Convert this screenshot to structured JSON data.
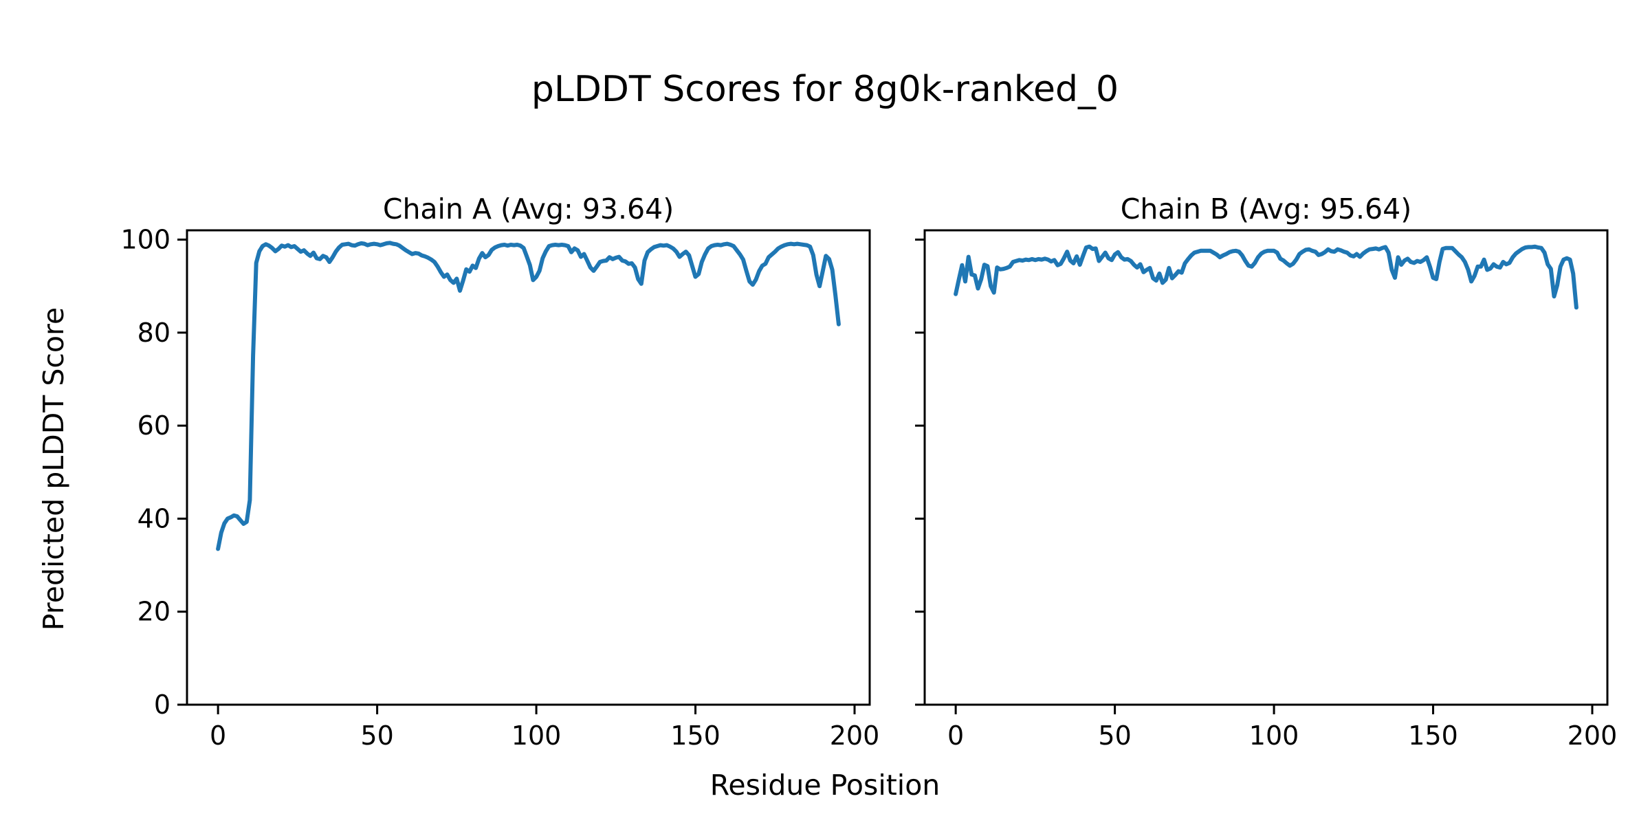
{
  "figure": {
    "title": "pLDDT Scores for 8g0k-ranked_0",
    "xlabel": "Residue Position",
    "ylabel": "Predicted pLDDT Score",
    "background_color": "#ffffff",
    "line_color": "#1f77b4",
    "axis_color": "#000000"
  },
  "chart_data": [
    {
      "type": "line",
      "title": "Chain A (Avg: 93.64)",
      "series_name": "Chain A pLDDT",
      "avg": 93.64,
      "x_start": 0,
      "xlim": [
        -9.75,
        204.75
      ],
      "ylim": [
        0,
        102
      ],
      "xticks": [
        0,
        50,
        100,
        150,
        200
      ],
      "yticks": [
        0,
        20,
        40,
        60,
        80,
        100
      ],
      "show_ytick_labels": true,
      "grid": false,
      "legend": false,
      "values": [
        33.5,
        37.0,
        39.0,
        40.0,
        40.3,
        40.7,
        40.5,
        39.7,
        38.9,
        39.3,
        44.0,
        75.0,
        95.0,
        97.5,
        98.6,
        99.0,
        98.7,
        98.2,
        97.5,
        98.0,
        98.7,
        98.5,
        98.8,
        98.4,
        98.6,
        98.0,
        97.4,
        97.7,
        97.0,
        96.5,
        97.2,
        96.0,
        95.8,
        96.5,
        96.2,
        95.2,
        96.2,
        97.4,
        98.3,
        98.9,
        99.0,
        99.1,
        98.8,
        98.7,
        99.0,
        99.2,
        99.1,
        98.8,
        99.0,
        99.1,
        99.0,
        98.8,
        99.0,
        99.2,
        99.3,
        99.1,
        99.0,
        98.7,
        98.2,
        97.7,
        97.3,
        96.9,
        97.1,
        97.0,
        96.6,
        96.4,
        96.1,
        95.7,
        95.2,
        94.2,
        93.0,
        92.0,
        92.5,
        91.3,
        90.7,
        91.6,
        89.0,
        91.2,
        93.6,
        93.1,
        94.4,
        93.9,
        95.9,
        97.1,
        96.2,
        96.7,
        97.8,
        98.3,
        98.6,
        98.8,
        98.9,
        98.7,
        98.9,
        98.8,
        98.9,
        98.7,
        98.2,
        96.4,
        94.5,
        91.3,
        92.0,
        93.3,
        96.0,
        97.5,
        98.6,
        98.8,
        98.9,
        98.8,
        98.9,
        98.8,
        98.6,
        97.3,
        98.1,
        97.7,
        96.3,
        96.9,
        95.5,
        94.0,
        93.3,
        94.2,
        95.2,
        95.4,
        95.5,
        96.2,
        95.8,
        96.1,
        96.3,
        95.5,
        95.3,
        94.8,
        94.9,
        94.0,
        91.5,
        90.5,
        95.5,
        97.3,
        97.9,
        98.4,
        98.6,
        98.8,
        98.7,
        98.8,
        98.5,
        98.1,
        97.4,
        96.3,
        96.9,
        97.4,
        96.6,
        94.3,
        92.0,
        92.6,
        95.2,
        96.8,
        98.1,
        98.6,
        98.8,
        98.9,
        98.8,
        99.0,
        99.1,
        98.9,
        98.6,
        97.7,
        96.8,
        95.7,
        93.3,
        91.0,
        90.3,
        91.4,
        93.2,
        94.4,
        94.8,
        96.2,
        96.8,
        97.4,
        98.1,
        98.5,
        98.8,
        99.0,
        99.1,
        99.0,
        99.1,
        99.0,
        98.9,
        98.8,
        98.5,
        96.7,
        92.5,
        90.0,
        93.2,
        96.5,
        95.8,
        93.5,
        88.0,
        81.8
      ]
    },
    {
      "type": "line",
      "title": "Chain B (Avg: 95.64)",
      "series_name": "Chain B pLDDT",
      "avg": 95.64,
      "x_start": 0,
      "xlim": [
        -9.75,
        204.75
      ],
      "ylim": [
        0,
        102
      ],
      "xticks": [
        0,
        50,
        100,
        150,
        200
      ],
      "yticks": [
        0,
        20,
        40,
        60,
        80,
        100
      ],
      "show_ytick_labels": false,
      "grid": false,
      "legend": false,
      "values": [
        88.3,
        91.5,
        94.5,
        91.0,
        96.3,
        92.5,
        92.3,
        89.5,
        91.5,
        94.6,
        94.3,
        90.0,
        88.6,
        94.0,
        93.6,
        93.7,
        93.9,
        94.2,
        95.2,
        95.4,
        95.6,
        95.5,
        95.7,
        95.6,
        95.8,
        95.6,
        95.8,
        95.7,
        95.9,
        95.7,
        95.3,
        95.6,
        94.5,
        94.8,
        96.0,
        97.4,
        95.5,
        94.9,
        96.4,
        94.6,
        96.5,
        98.3,
        98.5,
        98.0,
        98.1,
        95.4,
        96.3,
        97.2,
        96.0,
        95.6,
        96.8,
        97.3,
        96.2,
        95.7,
        95.8,
        95.4,
        94.6,
        94.0,
        94.7,
        93.0,
        93.5,
        93.9,
        91.7,
        91.2,
        92.7,
        90.7,
        91.4,
        93.9,
        91.7,
        92.4,
        93.2,
        92.9,
        94.9,
        95.8,
        96.6,
        97.2,
        97.4,
        97.6,
        97.6,
        97.6,
        97.6,
        97.2,
        96.8,
        96.2,
        96.6,
        96.9,
        97.3,
        97.5,
        97.6,
        97.4,
        96.6,
        95.4,
        94.4,
        94.2,
        95.0,
        96.2,
        97.0,
        97.4,
        97.6,
        97.6,
        97.6,
        97.2,
        95.9,
        95.5,
        94.9,
        94.4,
        94.8,
        95.7,
        96.9,
        97.4,
        97.8,
        97.9,
        97.6,
        97.4,
        96.7,
        96.9,
        97.3,
        97.9,
        97.5,
        97.4,
        97.9,
        97.7,
        97.4,
        97.2,
        96.6,
        96.4,
        96.9,
        96.3,
        97.0,
        97.5,
        97.9,
        98.0,
        98.1,
        97.9,
        98.2,
        98.4,
        97.2,
        93.5,
        91.8,
        96.2,
        94.6,
        95.5,
        95.9,
        95.2,
        95.0,
        95.4,
        95.2,
        95.6,
        96.2,
        94.2,
        91.8,
        91.5,
        95.2,
        98.0,
        98.2,
        98.2,
        98.2,
        97.5,
        96.8,
        96.2,
        95.2,
        93.5,
        91.0,
        92.2,
        94.2,
        94.2,
        95.7,
        93.5,
        93.8,
        94.7,
        94.2,
        94.0,
        95.2,
        94.7,
        95.0,
        96.2,
        97.0,
        97.5,
        98.0,
        98.3,
        98.4,
        98.4,
        98.5,
        98.3,
        98.2,
        97.2,
        94.7,
        93.7,
        87.8,
        90.2,
        94.2,
        95.7,
        96.0,
        95.7,
        92.7,
        85.4
      ]
    }
  ]
}
